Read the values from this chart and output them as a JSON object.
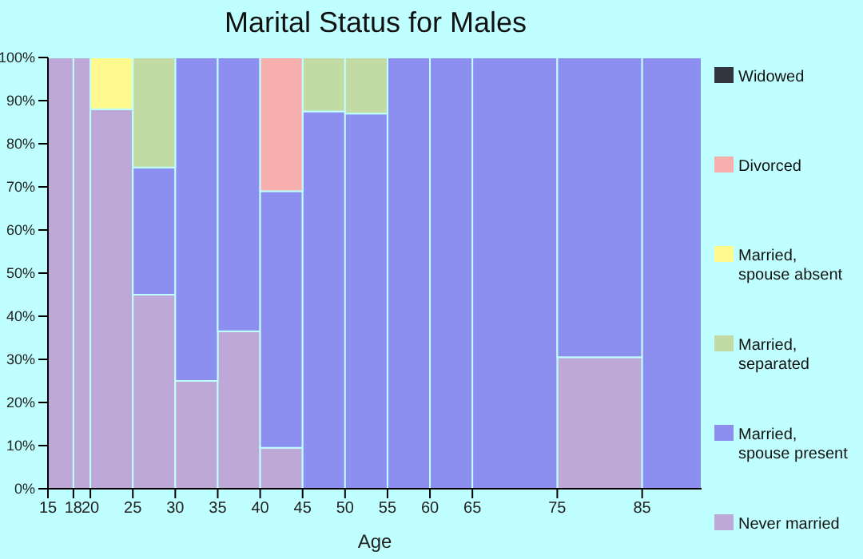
{
  "chart_data": {
    "type": "bar",
    "title": "Marital Status for Males",
    "xlabel": "Age",
    "stacked": true,
    "x": [
      16.5,
      19,
      22.5,
      27.5,
      32.5,
      37.5,
      42.5,
      47.5,
      52.5,
      57.5,
      62.5,
      70,
      80,
      88.5
    ],
    "xlim": [
      15,
      92
    ],
    "xticks": [
      15,
      18,
      20,
      25,
      30,
      35,
      40,
      45,
      50,
      55,
      60,
      65,
      75,
      85
    ],
    "ylim": [
      0,
      100
    ],
    "yticks": [
      {
        "value": 0,
        "label": "0%"
      },
      {
        "value": 10,
        "label": "10%"
      },
      {
        "value": 20,
        "label": "20%"
      },
      {
        "value": 30,
        "label": "30%"
      },
      {
        "value": 40,
        "label": "40%"
      },
      {
        "value": 50,
        "label": "50%"
      },
      {
        "value": 60,
        "label": "60%"
      },
      {
        "value": 70,
        "label": "70%"
      },
      {
        "value": 80,
        "label": "80%"
      },
      {
        "value": 90,
        "label": "90%"
      },
      {
        "value": 100,
        "label": "100%"
      }
    ],
    "series": [
      {
        "name": "Never married",
        "color": "#bea8d8",
        "values": [
          100,
          100,
          88,
          45,
          25,
          36.5,
          9.5,
          0,
          0,
          0,
          0,
          0,
          30.5,
          0
        ]
      },
      {
        "name": "Married, spouse present",
        "color": "#8c8ff0",
        "values": [
          0,
          0,
          0,
          29.5,
          75,
          63.5,
          59.5,
          87.5,
          87,
          100,
          100,
          100,
          69.5,
          100
        ]
      },
      {
        "name": "Married, separated",
        "color": "#c2dba4",
        "values": [
          0,
          0,
          0,
          25.5,
          0,
          0,
          0,
          12.5,
          13,
          0,
          0,
          0,
          0,
          0
        ]
      },
      {
        "name": "Married, spouse absent",
        "color": "#fff98e",
        "values": [
          0,
          0,
          12,
          0,
          0,
          0,
          0,
          0,
          0,
          0,
          0,
          0,
          0,
          0
        ]
      },
      {
        "name": "Divorced",
        "color": "#f8b0ae",
        "values": [
          0,
          0,
          0,
          0,
          0,
          0,
          31,
          0,
          0,
          0,
          0,
          0,
          0,
          0
        ]
      },
      {
        "name": "Widowed",
        "color": "#33363e",
        "values": [
          0,
          0,
          0,
          0,
          0,
          0,
          0,
          0,
          0,
          0,
          0,
          0,
          0,
          0
        ]
      }
    ],
    "grid": false,
    "legend": "right"
  }
}
